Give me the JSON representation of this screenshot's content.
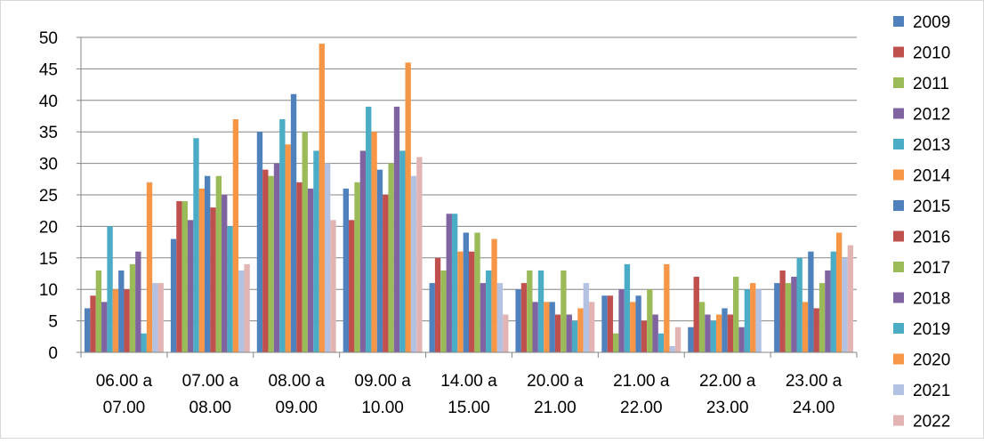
{
  "chart_data": {
    "type": "bar",
    "title": "",
    "xlabel": "",
    "ylabel": "",
    "ylim": [
      0,
      50
    ],
    "ytick_step": 5,
    "grid": "horizontal",
    "legend_position": "right",
    "categories": [
      "06.00 a 07.00",
      "07.00 a 08.00",
      "08.00 a 09.00",
      "09.00 a 10.00",
      "14.00 a 15.00",
      "20.00 a 21.00",
      "21.00 a 22.00",
      "22.00 a 23.00",
      "23.00 a 24.00"
    ],
    "category_lines": [
      [
        "06.00 a",
        "07.00"
      ],
      [
        "07.00 a",
        "08.00"
      ],
      [
        "08.00 a",
        "09.00"
      ],
      [
        "09.00 a",
        "10.00"
      ],
      [
        "14.00 a",
        "15.00"
      ],
      [
        "20.00 a",
        "21.00"
      ],
      [
        "21.00 a",
        "22.00"
      ],
      [
        "22.00 a",
        "23.00"
      ],
      [
        "23.00 a",
        "24.00"
      ]
    ],
    "series": [
      {
        "name": "2009",
        "color": "#4F81BD",
        "values": [
          7,
          18,
          35,
          26,
          11,
          10,
          9,
          4,
          11
        ]
      },
      {
        "name": "2010",
        "color": "#C0504D",
        "values": [
          9,
          24,
          29,
          21,
          15,
          11,
          9,
          12,
          13
        ]
      },
      {
        "name": "2011",
        "color": "#9BBB59",
        "values": [
          13,
          24,
          28,
          27,
          13,
          13,
          3,
          8,
          11
        ]
      },
      {
        "name": "2012",
        "color": "#8064A2",
        "values": [
          8,
          21,
          30,
          32,
          22,
          8,
          10,
          6,
          12
        ]
      },
      {
        "name": "2013",
        "color": "#4BACC6",
        "values": [
          20,
          34,
          37,
          39,
          22,
          13,
          14,
          5,
          15
        ]
      },
      {
        "name": "2014",
        "color": "#F79646",
        "values": [
          10,
          26,
          33,
          35,
          16,
          8,
          8,
          6,
          8
        ]
      },
      {
        "name": "2015",
        "color": "#4F81BD",
        "values": [
          13,
          28,
          41,
          29,
          19,
          8,
          9,
          7,
          16
        ]
      },
      {
        "name": "2016",
        "color": "#C0504D",
        "values": [
          10,
          23,
          27,
          25,
          16,
          6,
          5,
          6,
          7
        ]
      },
      {
        "name": "2017",
        "color": "#9BBB59",
        "values": [
          14,
          28,
          35,
          30,
          19,
          13,
          10,
          12,
          11
        ]
      },
      {
        "name": "2018",
        "color": "#8064A2",
        "values": [
          16,
          25,
          26,
          39,
          11,
          6,
          6,
          4,
          13
        ]
      },
      {
        "name": "2019",
        "color": "#4BACC6",
        "values": [
          3,
          20,
          32,
          32,
          13,
          5,
          3,
          10,
          16
        ]
      },
      {
        "name": "2020",
        "color": "#F79646",
        "values": [
          27,
          37,
          49,
          46,
          18,
          7,
          14,
          11,
          19
        ]
      },
      {
        "name": "2021",
        "color": "#B3C2E2",
        "values": [
          11,
          13,
          30,
          28,
          11,
          11,
          1,
          10,
          15
        ]
      },
      {
        "name": "2022",
        "color": "#E2B5B4",
        "values": [
          11,
          14,
          21,
          31,
          6,
          8,
          4,
          0,
          17
        ]
      }
    ]
  }
}
